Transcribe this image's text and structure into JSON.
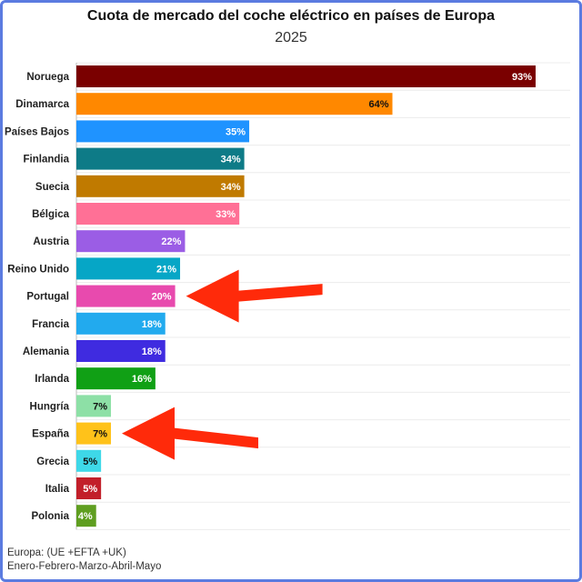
{
  "chart_data": {
    "type": "bar",
    "orientation": "horizontal",
    "title": "Cuota de mercado del coche eléctrico en países de Europa",
    "subtitle": "2025",
    "categories": [
      "Noruega",
      "Dinamarca",
      "Países Bajos",
      "Finlandia",
      "Suecia",
      "Bélgica",
      "Austria",
      "Reino Unido",
      "Portugal",
      "Francia",
      "Alemania",
      "Irlanda",
      "Hungría",
      "España",
      "Grecia",
      "Italia",
      "Polonia"
    ],
    "values": [
      93,
      64,
      35,
      34,
      34,
      33,
      22,
      21,
      20,
      18,
      18,
      16,
      7,
      7,
      5,
      5,
      4
    ],
    "data_labels": [
      "93%",
      "64%",
      "35%",
      "34%",
      "34%",
      "33%",
      "22%",
      "21%",
      "20%",
      "18%",
      "18%",
      "16%",
      "7%",
      "7%",
      "5%",
      "5%",
      "4%"
    ],
    "colors": [
      "#7a0000",
      "#ff8800",
      "#1f93ff",
      "#0e7b87",
      "#c07a00",
      "#ff7096",
      "#9b5de5",
      "#06a6c6",
      "#e84aae",
      "#22aaee",
      "#3f2be0",
      "#10a015",
      "#8de0a6",
      "#ffc21a",
      "#3ed8e8",
      "#c21f2a",
      "#5f9e20"
    ],
    "label_colors": [
      "#ffffff",
      "#111111",
      "#ffffff",
      "#ffffff",
      "#ffffff",
      "#ffffff",
      "#ffffff",
      "#ffffff",
      "#ffffff",
      "#ffffff",
      "#ffffff",
      "#ffffff",
      "#111111",
      "#111111",
      "#111111",
      "#ffffff",
      "#ffffff"
    ],
    "xlim": [
      0,
      100
    ],
    "grid": true,
    "legend": "none",
    "highlighted": [
      "Portugal",
      "España"
    ],
    "highlight_color": "#ff2a0a"
  },
  "footnote": {
    "line1": "Europa: (UE +EFTA +UK)",
    "line2": "Enero-Febrero-Marzo-Abril-Mayo"
  }
}
